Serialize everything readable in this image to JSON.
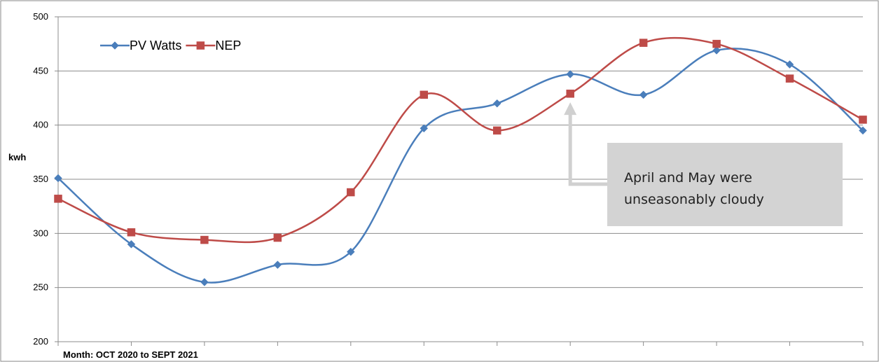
{
  "chart_data": {
    "type": "line",
    "xlabel": "Month:  OCT 2020 to SEPT 2021",
    "ylabel": "kwh",
    "ylim": [
      200,
      500
    ],
    "yticks": [
      200,
      250,
      300,
      350,
      400,
      450,
      500
    ],
    "x_count": 12,
    "grid": true,
    "legend_position": "top-left",
    "series": [
      {
        "name": "PV Watts",
        "color": "#4a7ebb",
        "marker": "diamond",
        "values": [
          351,
          290,
          255,
          271,
          283,
          397,
          420,
          447,
          428,
          469,
          456,
          395
        ]
      },
      {
        "name": "NEP",
        "color": "#be4b48",
        "marker": "square",
        "values": [
          332,
          301,
          294,
          296,
          338,
          428,
          395,
          429,
          476,
          475,
          443,
          405
        ]
      }
    ],
    "annotation": {
      "lines": [
        "April and May were",
        "unseasonably cloudy"
      ],
      "target_index": 7,
      "target_value": 421
    }
  }
}
